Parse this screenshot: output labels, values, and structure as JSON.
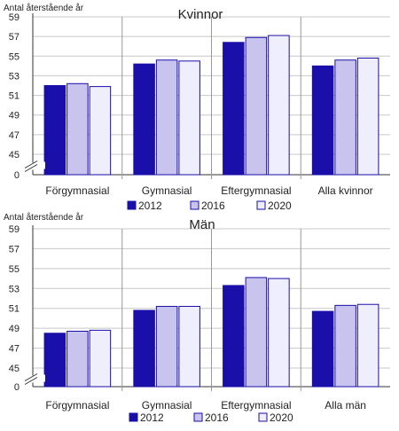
{
  "chart_data": [
    {
      "type": "bar",
      "title": "Kvinnor",
      "ylabel": "Antal återstående år",
      "categories": [
        "Förgymnasial",
        "Gymnasial",
        "Eftergymnasial",
        "Alla kvinnor"
      ],
      "yticks": [
        "0",
        "45",
        "47",
        "49",
        "51",
        "53",
        "55",
        "57",
        "59"
      ],
      "ylim": [
        45,
        59
      ],
      "axis_break": true,
      "series": [
        {
          "name": "2012",
          "color": "#1a0fa8",
          "values": [
            52.0,
            54.2,
            56.4,
            54.0
          ]
        },
        {
          "name": "2016",
          "color": "#c9c4ee",
          "values": [
            52.2,
            54.6,
            56.9,
            54.6
          ]
        },
        {
          "name": "2020",
          "color": "#eeeefc",
          "values": [
            51.9,
            54.5,
            57.1,
            54.8
          ]
        }
      ],
      "legend_position": "bottom"
    },
    {
      "type": "bar",
      "title": "Män",
      "ylabel": "Antal återstående år",
      "categories": [
        "Förgymnasial",
        "Gymnasial",
        "Eftergymnasial",
        "Alla män"
      ],
      "yticks": [
        "0",
        "45",
        "47",
        "49",
        "51",
        "53",
        "55",
        "57",
        "59"
      ],
      "ylim": [
        45,
        59
      ],
      "axis_break": true,
      "series": [
        {
          "name": "2012",
          "color": "#1a0fa8",
          "values": [
            48.5,
            50.8,
            53.3,
            50.7
          ]
        },
        {
          "name": "2016",
          "color": "#c9c4ee",
          "values": [
            48.7,
            51.2,
            54.1,
            51.3
          ]
        },
        {
          "name": "2020",
          "color": "#eeeefc",
          "values": [
            48.8,
            51.2,
            54.0,
            51.4
          ]
        }
      ],
      "legend_position": "bottom"
    }
  ]
}
